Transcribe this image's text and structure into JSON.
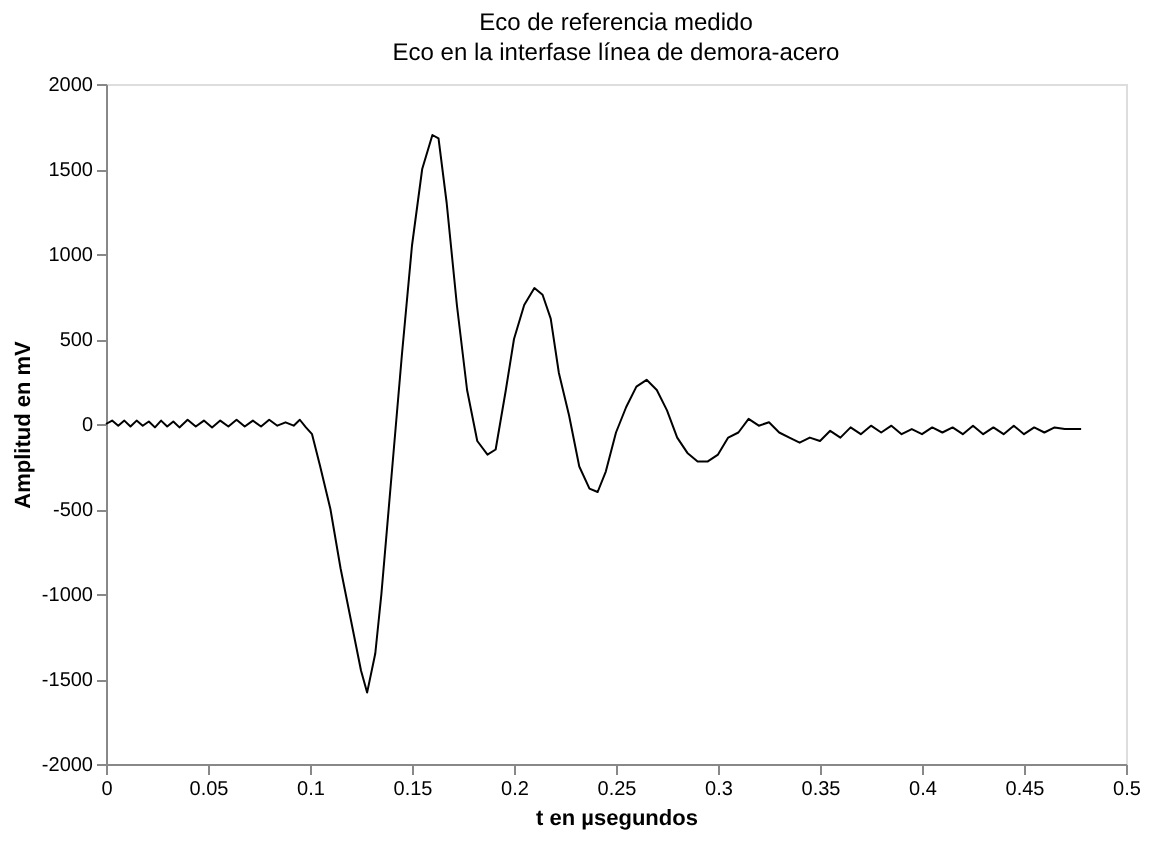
{
  "chart_data": {
    "type": "line",
    "title": "Eco de referencia medido",
    "subtitle": "Eco en la interfase línea de demora-acero",
    "xlabel": "t en µsegundos",
    "ylabel": "Amplitud en mV",
    "xlim": [
      0,
      0.5
    ],
    "xticks": [
      0,
      0.05,
      0.1,
      0.15,
      0.2,
      0.25,
      0.3,
      0.35,
      0.4,
      0.45,
      0.5
    ],
    "ylim": [
      -2000,
      2000
    ],
    "yticks": [
      -2000,
      -1500,
      -1000,
      -500,
      0,
      500,
      1000,
      1500,
      2000
    ],
    "grid": false,
    "marker": "none",
    "line_style": "solid",
    "series": [
      {
        "color": "#000000",
        "x": [
          0,
          0.003,
          0.006,
          0.009,
          0.012,
          0.015,
          0.018,
          0.021,
          0.024,
          0.027,
          0.03,
          0.033,
          0.036,
          0.04,
          0.044,
          0.048,
          0.052,
          0.056,
          0.06,
          0.064,
          0.068,
          0.072,
          0.076,
          0.08,
          0.084,
          0.088,
          0.092,
          0.095,
          0.098,
          0.101,
          0.105,
          0.11,
          0.115,
          0.12,
          0.125,
          0.128,
          0.132,
          0.135,
          0.14,
          0.145,
          0.15,
          0.155,
          0.16,
          0.163,
          0.167,
          0.172,
          0.177,
          0.182,
          0.187,
          0.191,
          0.196,
          0.2,
          0.205,
          0.21,
          0.214,
          0.218,
          0.222,
          0.227,
          0.232,
          0.237,
          0.241,
          0.245,
          0.25,
          0.255,
          0.26,
          0.265,
          0.27,
          0.275,
          0.28,
          0.285,
          0.29,
          0.295,
          0.3,
          0.305,
          0.31,
          0.315,
          0.32,
          0.325,
          0.33,
          0.335,
          0.34,
          0.345,
          0.35,
          0.355,
          0.36,
          0.365,
          0.37,
          0.375,
          0.38,
          0.385,
          0.39,
          0.395,
          0.4,
          0.405,
          0.41,
          0.415,
          0.42,
          0.425,
          0.43,
          0.435,
          0.44,
          0.445,
          0.45,
          0.455,
          0.46,
          0.465,
          0.47,
          0.475,
          0.478
        ],
        "values": [
          0,
          20,
          -10,
          20,
          -15,
          20,
          -10,
          15,
          -20,
          20,
          -15,
          15,
          -20,
          25,
          -15,
          20,
          -20,
          20,
          -15,
          25,
          -15,
          20,
          -15,
          25,
          -10,
          10,
          -10,
          25,
          -20,
          -60,
          -250,
          -500,
          -850,
          -1150,
          -1450,
          -1580,
          -1350,
          -1000,
          -300,
          400,
          1050,
          1500,
          1700,
          1680,
          1300,
          700,
          200,
          -100,
          -180,
          -150,
          200,
          500,
          700,
          800,
          760,
          620,
          300,
          50,
          -250,
          -380,
          -400,
          -280,
          -50,
          100,
          220,
          260,
          200,
          80,
          -80,
          -170,
          -220,
          -220,
          -180,
          -80,
          -50,
          30,
          -10,
          10,
          -50,
          -80,
          -110,
          -80,
          -100,
          -40,
          -80,
          -20,
          -60,
          -10,
          -50,
          -10,
          -60,
          -30,
          -60,
          -20,
          -50,
          -20,
          -60,
          -10,
          -60,
          -20,
          -60,
          -10,
          -60,
          -20,
          -50,
          -20,
          -30,
          -30,
          -30
        ]
      }
    ]
  }
}
